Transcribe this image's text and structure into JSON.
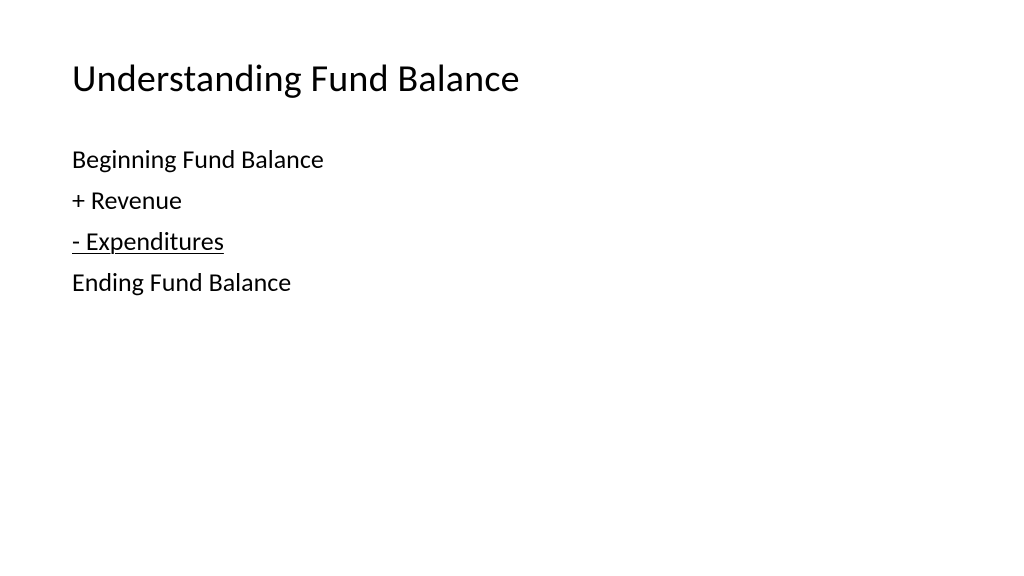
{
  "slide": {
    "title": "Understanding Fund Balance",
    "lines": {
      "line1": "Beginning Fund Balance",
      "line2": "+ Revenue",
      "line3": "- Expenditures",
      "line4": "Ending Fund Balance"
    },
    "styling": {
      "background_color": "#ffffff",
      "text_color": "#000000",
      "title_fontsize": 38,
      "body_fontsize": 26,
      "font_family": "Calibri",
      "line3_underlined": true
    }
  }
}
